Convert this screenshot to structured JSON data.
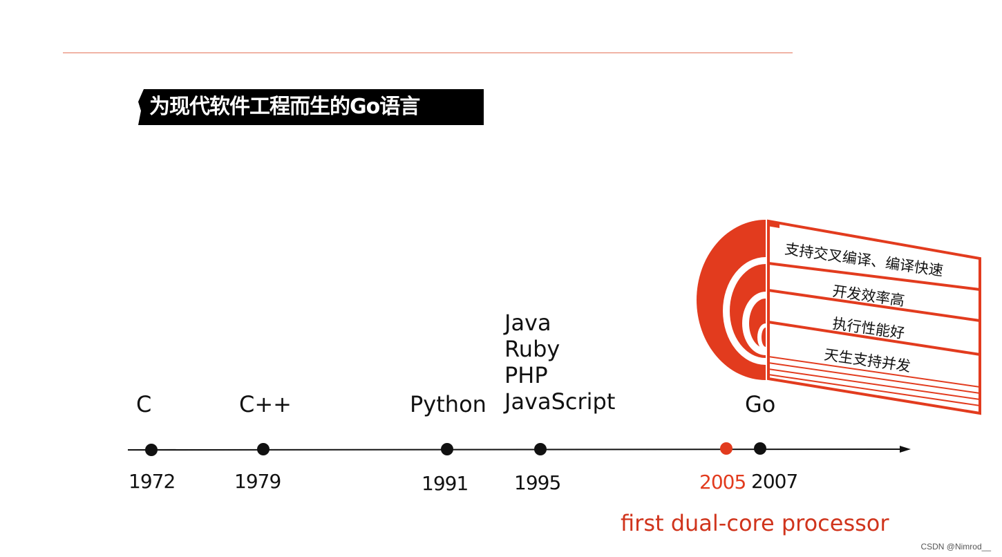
{
  "title": "为现代软件工程而生的Go语言",
  "timeline": {
    "events": [
      {
        "year": "1972",
        "label": [
          "C"
        ],
        "highlight": false
      },
      {
        "year": "1979",
        "label": [
          "C++"
        ],
        "highlight": false
      },
      {
        "year": "1991",
        "label": [
          "Python"
        ],
        "highlight": false
      },
      {
        "year": "1995",
        "label": [
          "Java",
          "Ruby",
          "PHP",
          "JavaScript"
        ],
        "highlight": false
      },
      {
        "year": "2005",
        "label": [],
        "highlight": true
      },
      {
        "year": "2007",
        "label": [
          "Go"
        ],
        "highlight": false
      }
    ],
    "highlight_caption": "first dual-core processor"
  },
  "go_features": [
    "支持交叉编译、编译快速",
    "开发效率高",
    "执行性能好",
    "天生支持并发"
  ],
  "colors": {
    "accent": "#e23b1e",
    "axis": "#111111"
  },
  "watermark": "CSDN @Nimrod__"
}
